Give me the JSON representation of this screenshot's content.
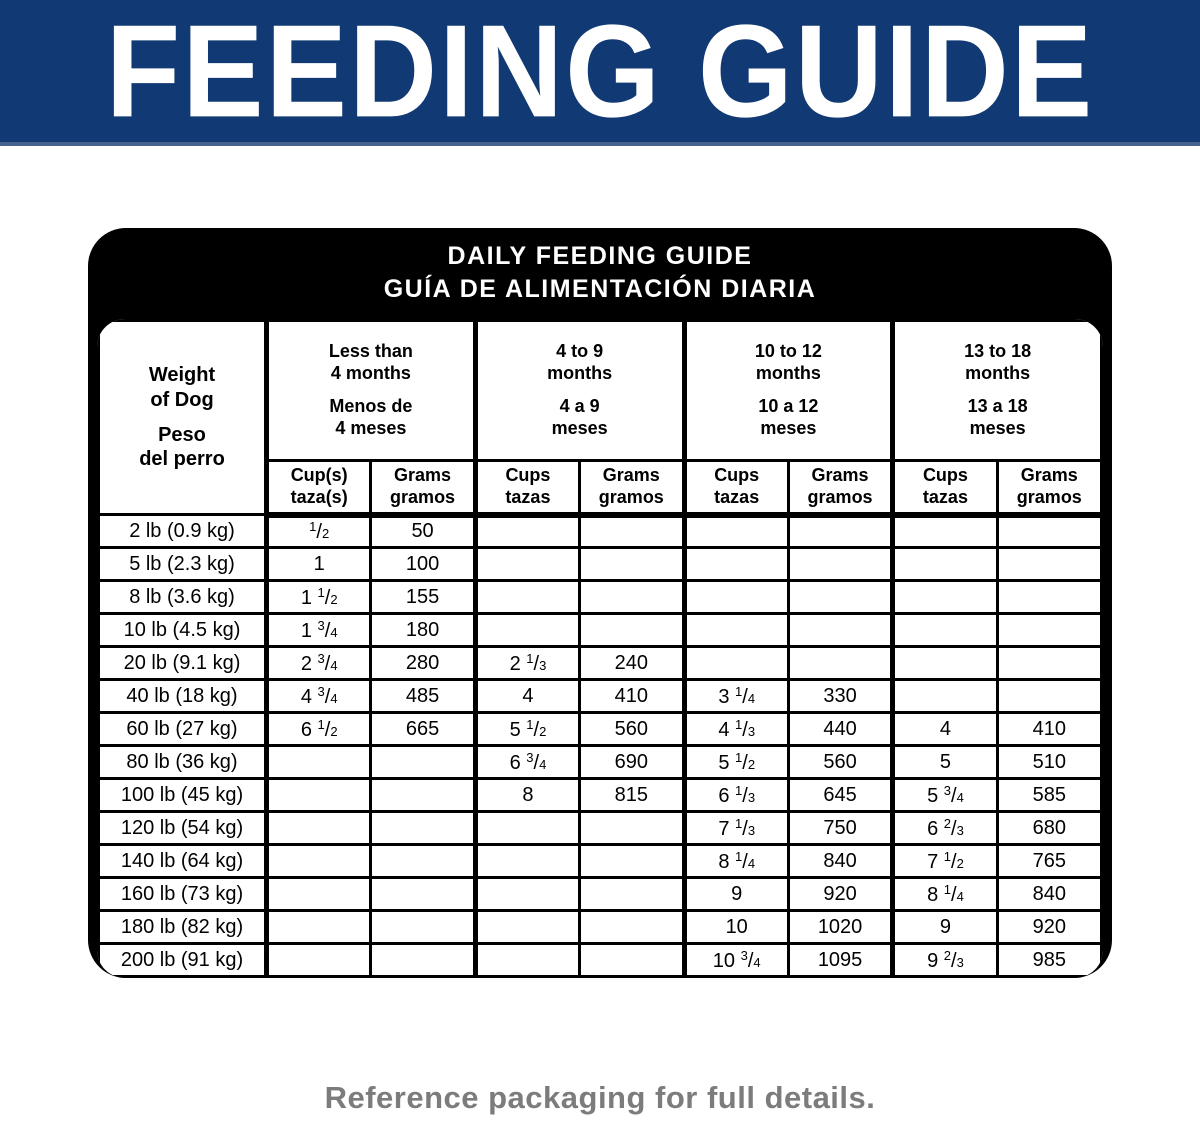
{
  "theme": {
    "banner_bg": "#113974",
    "banner_edge": "#47628f",
    "ink": "#000000",
    "paper": "#ffffff",
    "note": "#7c7c7c"
  },
  "banner": {
    "title": "FEEDING GUIDE"
  },
  "card": {
    "title_en": "DAILY FEEDING GUIDE",
    "title_es": "GUÍA DE ALIMENTACIÓN DIARIA"
  },
  "table": {
    "weight_header": {
      "en": [
        "Weight",
        "of Dog"
      ],
      "es": [
        "Peso",
        "del perro"
      ]
    },
    "groups": [
      {
        "en": [
          "Less than",
          "4 months"
        ],
        "es": [
          "Menos de",
          "4 meses"
        ],
        "cups_label": [
          "Cup(s)",
          "taza(s)"
        ],
        "grams_label": [
          "Grams",
          "gramos"
        ]
      },
      {
        "en": [
          "4 to 9",
          "months"
        ],
        "es": [
          "4 a 9",
          "meses"
        ],
        "cups_label": [
          "Cups",
          "tazas"
        ],
        "grams_label": [
          "Grams",
          "gramos"
        ]
      },
      {
        "en": [
          "10 to 12",
          "months"
        ],
        "es": [
          "10 a 12",
          "meses"
        ],
        "cups_label": [
          "Cups",
          "tazas"
        ],
        "grams_label": [
          "Grams",
          "gramos"
        ]
      },
      {
        "en": [
          "13 to 18",
          "months"
        ],
        "es": [
          "13 a 18",
          "meses"
        ],
        "cups_label": [
          "Cups",
          "tazas"
        ],
        "grams_label": [
          "Grams",
          "gramos"
        ]
      }
    ],
    "rows": [
      {
        "weight": "2 lb (0.9 kg)",
        "values": [
          "1/2",
          "50",
          "",
          "",
          "",
          "",
          "",
          ""
        ]
      },
      {
        "weight": "5 lb (2.3 kg)",
        "values": [
          "1",
          "100",
          "",
          "",
          "",
          "",
          "",
          ""
        ]
      },
      {
        "weight": "8 lb (3.6 kg)",
        "values": [
          "1 1/2",
          "155",
          "",
          "",
          "",
          "",
          "",
          ""
        ]
      },
      {
        "weight": "10 lb (4.5 kg)",
        "values": [
          "1 3/4",
          "180",
          "",
          "",
          "",
          "",
          "",
          ""
        ]
      },
      {
        "weight": "20 lb (9.1 kg)",
        "values": [
          "2 3/4",
          "280",
          "2 1/3",
          "240",
          "",
          "",
          "",
          ""
        ]
      },
      {
        "weight": "40 lb (18 kg)",
        "values": [
          "4 3/4",
          "485",
          "4",
          "410",
          "3 1/4",
          "330",
          "",
          ""
        ]
      },
      {
        "weight": "60 lb (27 kg)",
        "values": [
          "6 1/2",
          "665",
          "5 1/2",
          "560",
          "4 1/3",
          "440",
          "4",
          "410"
        ]
      },
      {
        "weight": "80 lb (36 kg)",
        "values": [
          "",
          "",
          "6 3/4",
          "690",
          "5 1/2",
          "560",
          "5",
          "510"
        ]
      },
      {
        "weight": "100 lb (45 kg)",
        "values": [
          "",
          "",
          "8",
          "815",
          "6 1/3",
          "645",
          "5 3/4",
          "585"
        ]
      },
      {
        "weight": "120 lb (54 kg)",
        "values": [
          "",
          "",
          "",
          "",
          "7 1/3",
          "750",
          "6 2/3",
          "680"
        ]
      },
      {
        "weight": "140 lb (64 kg)",
        "values": [
          "",
          "",
          "",
          "",
          "8 1/4",
          "840",
          "7 1/2",
          "765"
        ]
      },
      {
        "weight": "160 lb (73 kg)",
        "values": [
          "",
          "",
          "",
          "",
          "9",
          "920",
          "8 1/4",
          "840"
        ]
      },
      {
        "weight": "180 lb (82 kg)",
        "values": [
          "",
          "",
          "",
          "",
          "10",
          "1020",
          "9",
          "920"
        ]
      },
      {
        "weight": "200 lb (91 kg)",
        "values": [
          "",
          "",
          "",
          "",
          "10 3/4",
          "1095",
          "9 2/3",
          "985"
        ]
      }
    ]
  },
  "footer": {
    "note": "Reference packaging for full details."
  }
}
